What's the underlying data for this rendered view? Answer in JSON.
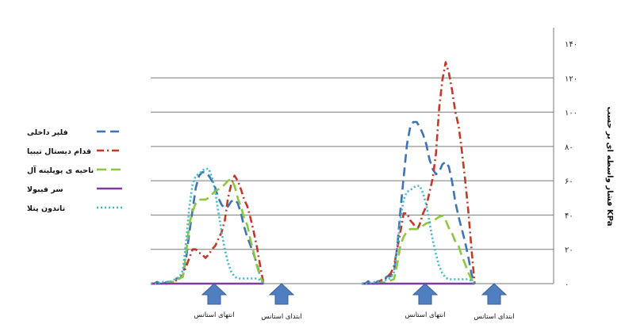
{
  "chart_data": {
    "type": "line",
    "ylabel": "فشار واسطه ای بر حسب KPa",
    "ylim": [
      0,
      140
    ],
    "yticks": [
      {
        "value": 0,
        "label": "۰"
      },
      {
        "value": 20,
        "label": "۲۰"
      },
      {
        "value": 40,
        "label": "۴۰"
      },
      {
        "value": 60,
        "label": "۶۰"
      },
      {
        "value": 80,
        "label": "۸۰"
      },
      {
        "value": 100,
        "label": "۱۰۰"
      },
      {
        "value": 120,
        "label": "۱۲۰"
      },
      {
        "value": 140,
        "label": "۱۴۰"
      }
    ],
    "grid": true,
    "legend_position": "left",
    "x": [
      0,
      4,
      8,
      12,
      16,
      20,
      24,
      28,
      32,
      36,
      40,
      44,
      48,
      52,
      56,
      60,
      64,
      68,
      72,
      76,
      80,
      84,
      88,
      92,
      96,
      100,
      104,
      108,
      112,
      116,
      120,
      124,
      128,
      132,
      136,
      140,
      144,
      148,
      152,
      156,
      160,
      164,
      168,
      172,
      176,
      180,
      184,
      188,
      192,
      196,
      200,
      204,
      208,
      212,
      216,
      220,
      224,
      228,
      232,
      236,
      240,
      244,
      248,
      252,
      256,
      260,
      264,
      268,
      272,
      276,
      280,
      284,
      288,
      292,
      296,
      300,
      304,
      308,
      312,
      316,
      320,
      324,
      328,
      332,
      336,
      340,
      344,
      348,
      352,
      356,
      360,
      364,
      368,
      372,
      376,
      380,
      384,
      388,
      392,
      396,
      400,
      404,
      408,
      412,
      416,
      420,
      424,
      428,
      432,
      436,
      440,
      444,
      448,
      452,
      456,
      460,
      464,
      468,
      472,
      476,
      480,
      484,
      488,
      492,
      496,
      500
    ],
    "series": [
      {
        "name": "فلپر داخلی",
        "color": "#3f73b4",
        "dash": "11,6",
        "values": [
          0,
          0,
          1,
          0,
          0,
          1,
          1,
          2,
          3,
          3,
          5,
          15,
          30,
          43,
          56,
          63,
          65,
          65,
          63,
          60,
          56,
          50,
          46,
          44,
          45,
          48,
          49,
          47,
          41,
          33,
          27,
          22,
          17,
          11,
          4,
          0,
          null,
          null,
          null,
          null,
          null,
          null,
          null,
          null,
          null,
          null,
          null,
          null,
          null,
          null,
          null,
          null,
          null,
          null,
          null,
          null,
          null,
          null,
          null,
          null,
          null,
          null,
          null,
          null,
          null,
          null,
          null,
          null,
          null,
          null,
          null,
          null,
          null,
          null,
          null,
          null,
          null,
          null,
          null,
          null,
          null,
          null,
          null,
          null,
          null,
          null,
          null,
          null,
          null,
          null,
          null,
          null,
          null,
          null,
          null,
          null,
          null,
          null,
          null,
          null,
          null,
          null,
          null,
          null,
          null,
          null,
          null,
          null,
          null,
          null,
          null,
          null,
          null,
          null,
          null,
          null,
          null,
          null,
          null,
          null,
          null,
          null,
          null,
          null,
          null,
          null
        ]
      },
      {
        "name": "قدام دیستال تیبیا",
        "color": "#c0392b",
        "dash": "9,4,2,4",
        "values": [
          0,
          0,
          0,
          0,
          0,
          0,
          1,
          1,
          2,
          3,
          5,
          10,
          15,
          20,
          20,
          18,
          17,
          15,
          17,
          20,
          22,
          26,
          30,
          37,
          50,
          58,
          63,
          60,
          55,
          49,
          45,
          38,
          30,
          21,
          10,
          0,
          null,
          null,
          null,
          null,
          null,
          null,
          null,
          null,
          null,
          null,
          null,
          null,
          null,
          null,
          null,
          null,
          null,
          null,
          null,
          null,
          null,
          null,
          null,
          null,
          null,
          null,
          null,
          null,
          null,
          null,
          null,
          null,
          null,
          null,
          null,
          null,
          null,
          null,
          null,
          null,
          null,
          null,
          null,
          null,
          null,
          null,
          null,
          null,
          null,
          null,
          null,
          null,
          null,
          null,
          null,
          null,
          null,
          null,
          null,
          null,
          null,
          null,
          null,
          null,
          null,
          null,
          null,
          null,
          null,
          null,
          null,
          null,
          null,
          null,
          null,
          null,
          null,
          null,
          null,
          null,
          null,
          null,
          null,
          null,
          null,
          null,
          null,
          null,
          null,
          null
        ]
      },
      {
        "name": "ناحیه ی پوپلیته آل",
        "color": "#8dc63f",
        "dash": "12,6",
        "values": [
          0,
          0,
          0,
          0,
          0,
          0,
          1,
          1,
          2,
          3,
          4,
          18,
          35,
          42,
          47,
          49,
          49,
          49,
          50,
          52,
          54,
          55,
          56,
          58,
          60,
          61,
          57,
          50,
          45,
          38,
          34,
          25,
          18,
          10,
          4,
          0,
          null,
          null,
          null,
          null,
          null,
          null,
          null,
          null,
          null,
          null,
          null,
          null,
          null,
          null,
          null,
          null,
          null,
          null,
          null,
          null,
          null,
          null,
          null,
          null,
          null,
          null,
          null,
          null,
          null,
          null,
          null,
          null,
          null,
          null,
          null,
          null,
          null,
          null,
          null,
          null,
          null,
          null,
          null,
          null,
          null,
          null,
          null,
          null,
          null,
          null,
          null,
          null,
          null,
          null,
          null,
          null,
          null,
          null,
          null,
          null,
          null,
          null,
          null,
          null,
          null,
          null,
          null,
          null,
          null,
          null,
          null,
          null,
          null,
          null,
          null,
          null,
          null,
          null,
          null,
          null,
          null,
          null,
          null,
          null,
          null,
          null,
          null,
          null,
          null,
          null
        ]
      },
      {
        "name": "سر فیبولا",
        "color": "#7b3f9e",
        "dash": "none",
        "values": [
          0,
          0,
          0,
          0,
          0,
          0,
          0,
          0,
          0,
          0,
          0,
          0,
          0,
          0,
          0,
          0,
          0,
          0,
          0,
          0,
          0,
          0,
          0,
          0,
          0,
          0,
          0,
          0,
          0,
          0,
          0,
          0,
          0,
          0,
          0,
          0,
          null,
          null,
          null,
          null,
          null,
          null,
          null,
          null,
          null,
          null,
          null,
          null,
          null,
          null,
          null,
          null,
          null,
          null,
          null,
          null,
          null,
          null,
          null,
          null,
          null,
          null,
          null,
          null,
          null,
          null,
          null,
          null,
          null,
          null,
          null,
          null,
          null,
          null,
          null,
          null,
          null,
          null,
          null,
          null,
          null,
          null,
          null,
          null,
          null,
          null,
          null,
          null,
          null,
          null,
          null,
          null,
          null,
          null,
          null,
          null,
          null,
          null,
          null,
          null,
          null,
          null,
          null,
          null,
          null,
          null,
          null,
          null,
          null,
          null,
          null,
          null,
          null,
          null,
          null,
          null,
          null,
          null,
          null,
          null,
          null,
          null,
          null,
          null,
          null,
          null
        ]
      },
      {
        "name": "تاندون پتلا",
        "color": "#3fb6c9",
        "dash": "2,3",
        "values": [
          0,
          0,
          0,
          1,
          1,
          1,
          1,
          2,
          3,
          4,
          8,
          25,
          45,
          58,
          63,
          64,
          66,
          67,
          67,
          62,
          54,
          42,
          30,
          20,
          12,
          7,
          4,
          3,
          3,
          3,
          3,
          3,
          3,
          3,
          2,
          0,
          null,
          null,
          null,
          null,
          null,
          null,
          null,
          null,
          null,
          null,
          null,
          null,
          null,
          null,
          null,
          null,
          null,
          null,
          null,
          null,
          null,
          null,
          null,
          null,
          null,
          null,
          null,
          null,
          null,
          null,
          null,
          null,
          null,
          null,
          null,
          null,
          null,
          null,
          null,
          null,
          null,
          null,
          null,
          null,
          null,
          null,
          null,
          null,
          null,
          null,
          null,
          null,
          null,
          null,
          null,
          null,
          null,
          null,
          null,
          null,
          null,
          null,
          null,
          null,
          null,
          null,
          null,
          null,
          null,
          null,
          null,
          null,
          null,
          null,
          null,
          null,
          null,
          null,
          null,
          null,
          null,
          null,
          null,
          null,
          null,
          null,
          null,
          null,
          null,
          null
        ]
      }
    ],
    "annotations": [
      {
        "text": "انتهای استانس",
        "group": 1,
        "position": 1
      },
      {
        "text": "ابتدای استانس",
        "group": 1,
        "position": 2
      },
      {
        "text": "انتهای استانس",
        "group": 2,
        "position": 1
      },
      {
        "text": "ابتدای استانس",
        "group": 2,
        "position": 2
      }
    ]
  }
}
